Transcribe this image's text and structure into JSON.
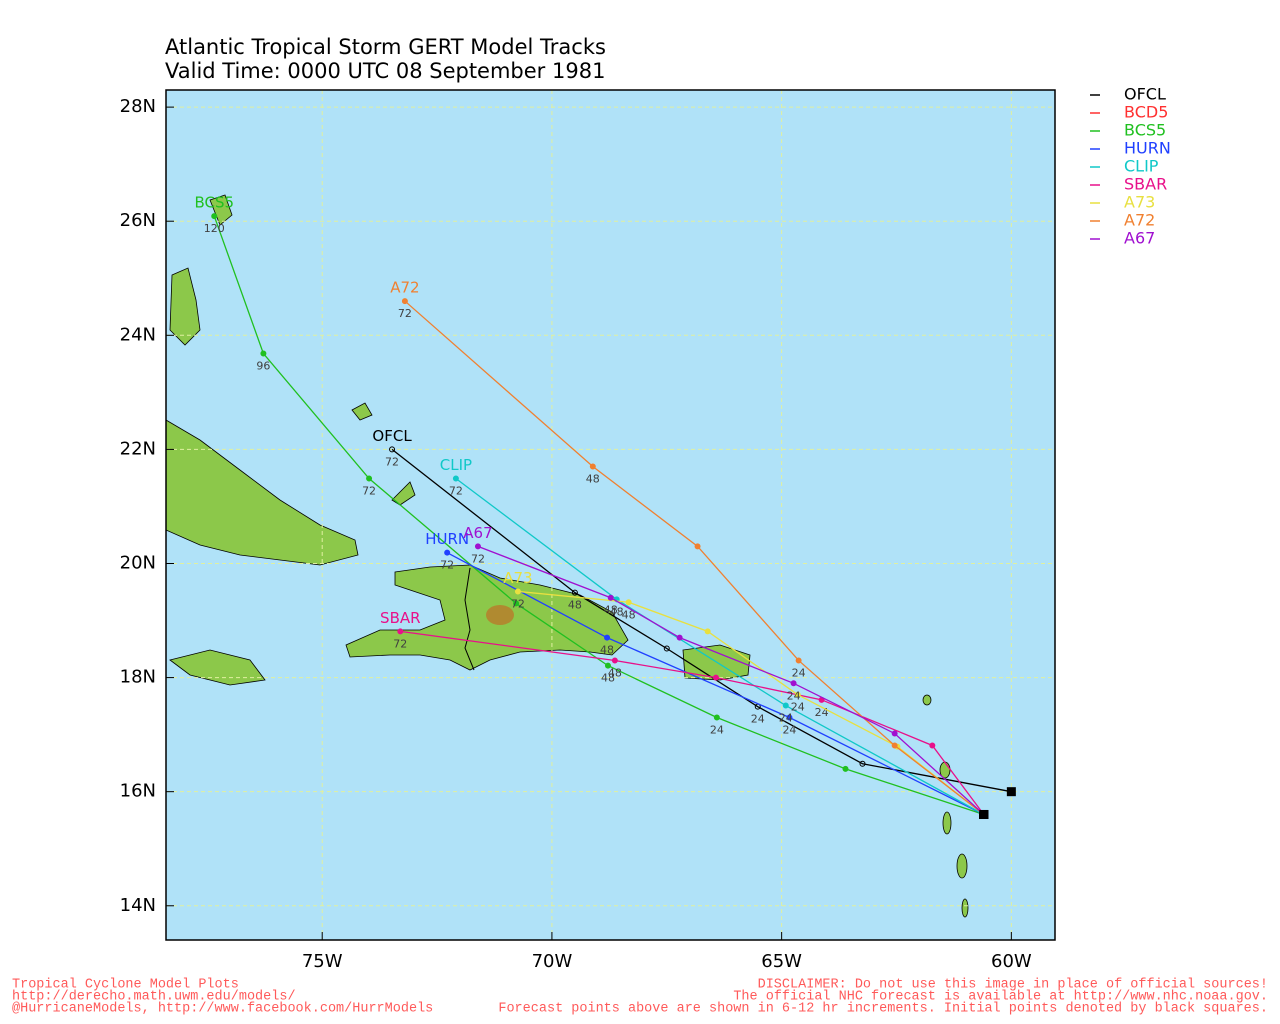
{
  "chart_data": {
    "type": "track",
    "title": "Atlantic Tropical Storm GERT Model Tracks",
    "subtitle": "Valid Time: 0000 UTC 08 September 1981",
    "xlim": [
      -78.4,
      -59.05
    ],
    "ylim": [
      13.4,
      28.3
    ],
    "xticks": [
      {
        "value": -75,
        "label": "75W"
      },
      {
        "value": -70,
        "label": "70W"
      },
      {
        "value": -65,
        "label": "65W"
      },
      {
        "value": -60,
        "label": "60W"
      }
    ],
    "yticks": [
      {
        "value": 14,
        "label": "14N"
      },
      {
        "value": 16,
        "label": "16N"
      },
      {
        "value": 18,
        "label": "18N"
      },
      {
        "value": 20,
        "label": "20N"
      },
      {
        "value": 22,
        "label": "22N"
      },
      {
        "value": 24,
        "label": "24N"
      },
      {
        "value": 26,
        "label": "26N"
      },
      {
        "value": 28,
        "label": "28N"
      }
    ],
    "grid": true,
    "series": [
      {
        "name": "OFCL",
        "color": "#000000",
        "x": [
          -60.0,
          -63.24,
          -65.52,
          -67.5,
          -69.5,
          -73.48
        ],
        "y": [
          16.0,
          16.49,
          17.49,
          18.51,
          19.49,
          22.0
        ],
        "hours": [
          null,
          null,
          24,
          null,
          48,
          72
        ]
      },
      {
        "name": "BCD5",
        "color": "#ff3030",
        "x": [
          -60.6
        ],
        "y": [
          15.6
        ],
        "hours": [
          null
        ]
      },
      {
        "name": "BCS5",
        "color": "#20c020",
        "x": [
          -60.6,
          -63.61,
          -66.41,
          -68.78,
          -70.78,
          -73.98,
          -76.28,
          -77.35
        ],
        "y": [
          15.6,
          16.4,
          17.3,
          18.21,
          19.3,
          21.49,
          23.68,
          26.09
        ],
        "hours": [
          null,
          null,
          24,
          48,
          null,
          72,
          96,
          120
        ]
      },
      {
        "name": "HURN",
        "color": "#2040ff",
        "x": [
          -60.6,
          -64.83,
          -68.8,
          -72.28
        ],
        "y": [
          15.6,
          17.3,
          18.7,
          20.19
        ],
        "hours": [
          null,
          24,
          48,
          72
        ]
      },
      {
        "name": "CLIP",
        "color": "#10c8c8",
        "x": [
          -60.6,
          -64.91,
          -68.59,
          -72.09
        ],
        "y": [
          15.6,
          17.51,
          19.37,
          21.49
        ],
        "hours": [
          null,
          24,
          48,
          72
        ]
      },
      {
        "name": "SBAR",
        "color": "#e8108a",
        "x": [
          -60.6,
          -61.72,
          -64.13,
          -66.43,
          -68.63,
          -73.3
        ],
        "y": [
          15.6,
          16.81,
          17.61,
          18.0,
          18.3,
          18.81
        ],
        "hours": [
          null,
          null,
          24,
          null,
          48,
          72
        ]
      },
      {
        "name": "A73",
        "color": "#e8e040",
        "x": [
          -60.6,
          -62.48,
          -64.65,
          -66.61,
          -68.33,
          -70.74
        ],
        "y": [
          15.6,
          16.79,
          17.7,
          18.81,
          19.32,
          19.51
        ],
        "hours": [
          null,
          null,
          24,
          null,
          48,
          72
        ]
      },
      {
        "name": "A72",
        "color": "#f08030",
        "x": [
          -60.6,
          -62.54,
          -64.63,
          -66.83,
          -69.11,
          -73.2
        ],
        "y": [
          15.6,
          16.81,
          18.3,
          20.3,
          21.7,
          24.6
        ],
        "hours": [
          null,
          null,
          24,
          null,
          48,
          72
        ]
      },
      {
        "name": "A67",
        "color": "#a010d0",
        "x": [
          -60.6,
          -62.54,
          -64.74,
          -67.22,
          -68.72,
          -71.61
        ],
        "y": [
          15.6,
          17.02,
          17.9,
          18.7,
          19.4,
          20.3
        ],
        "hours": [
          null,
          null,
          24,
          null,
          48,
          72
        ]
      }
    ]
  },
  "footer": {
    "left": [
      "Tropical Cyclone Model Plots",
      "http://derecho.math.uwm.edu/models/",
      "@HurricaneModels, http://www.facebook.com/HurrModels"
    ],
    "right": [
      "DISCLAIMER: Do not use this image in place of official sources!",
      "The official NHC forecast is available at http://www.nhc.noaa.gov.",
      "Forecast points above are shown in 6-12 hr increments.  Initial points denoted by black squares."
    ]
  }
}
